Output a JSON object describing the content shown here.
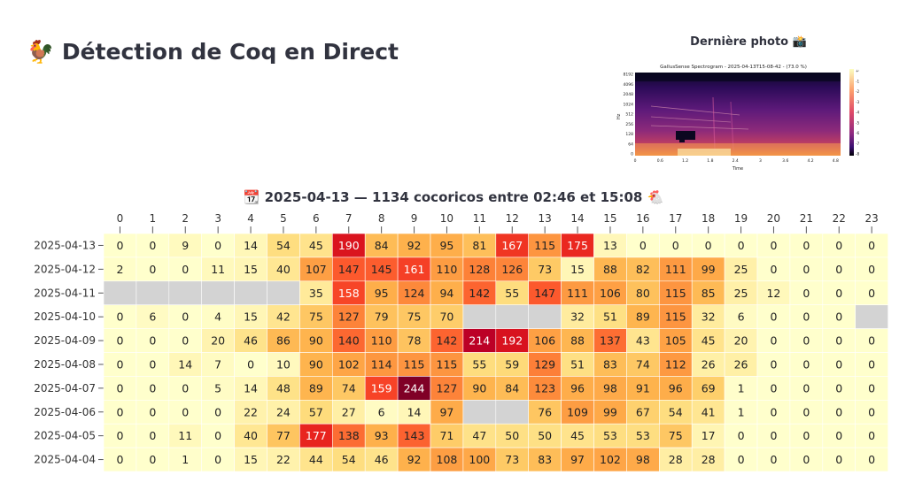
{
  "page": {
    "title": "🐓 Détection de Coq en Direct",
    "photo_caption": "Dernière photo 📸",
    "heatmap_title": "📆 2025-04-13 — 1134 cocoricos entre 02:46 et 15:08 🐔"
  },
  "spectrogram": {
    "title": "GallusSense Spectrogram - 2025-04-13T15-08-42 - (73.0 %)",
    "ylabel": "Hz",
    "xlabel": "Time",
    "yticks": [
      "8192",
      "4096",
      "2048",
      "1024",
      "512",
      "256",
      "128",
      "64",
      "0"
    ],
    "xticks": [
      "0",
      "0.6",
      "1.2",
      "1.8",
      "2.4",
      "3",
      "3.6",
      "4.2",
      "4.8"
    ],
    "colorbar_ticks": [
      "+0 dB",
      "-10 dB",
      "-20 dB",
      "-30 dB",
      "-40 dB",
      "-50 dB",
      "-60 dB",
      "-70 dB",
      "-80 dB"
    ]
  },
  "chart_data": {
    "type": "heatmap",
    "x": [
      "0",
      "1",
      "2",
      "3",
      "4",
      "5",
      "6",
      "7",
      "8",
      "9",
      "10",
      "11",
      "12",
      "13",
      "14",
      "15",
      "16",
      "17",
      "18",
      "19",
      "20",
      "21",
      "22",
      "23"
    ],
    "y": [
      "2025-04-13",
      "2025-04-12",
      "2025-04-11",
      "2025-04-10",
      "2025-04-09",
      "2025-04-08",
      "2025-04-07",
      "2025-04-06",
      "2025-04-05",
      "2025-04-04"
    ],
    "values": [
      [
        0,
        0,
        9,
        0,
        14,
        54,
        45,
        190,
        84,
        92,
        95,
        81,
        167,
        115,
        175,
        13,
        0,
        0,
        0,
        0,
        0,
        0,
        0,
        0
      ],
      [
        2,
        0,
        0,
        11,
        15,
        40,
        107,
        147,
        145,
        161,
        110,
        128,
        126,
        73,
        15,
        88,
        82,
        111,
        99,
        25,
        0,
        0,
        0,
        0
      ],
      [
        null,
        null,
        null,
        null,
        null,
        null,
        35,
        158,
        95,
        124,
        94,
        142,
        55,
        147,
        111,
        106,
        80,
        115,
        85,
        25,
        12,
        0,
        0,
        0
      ],
      [
        0,
        6,
        0,
        4,
        15,
        42,
        75,
        127,
        79,
        75,
        70,
        null,
        null,
        null,
        32,
        51,
        89,
        115,
        32,
        6,
        0,
        0,
        0,
        null
      ],
      [
        0,
        0,
        0,
        20,
        46,
        86,
        90,
        140,
        110,
        78,
        142,
        214,
        192,
        106,
        88,
        137,
        43,
        105,
        45,
        20,
        0,
        0,
        0,
        0
      ],
      [
        0,
        0,
        14,
        7,
        0,
        10,
        90,
        102,
        114,
        115,
        115,
        55,
        59,
        129,
        51,
        83,
        74,
        112,
        26,
        26,
        0,
        0,
        0,
        0
      ],
      [
        0,
        0,
        0,
        5,
        14,
        48,
        89,
        74,
        159,
        244,
        127,
        90,
        84,
        123,
        96,
        98,
        91,
        96,
        69,
        1,
        0,
        0,
        0,
        0
      ],
      [
        0,
        0,
        0,
        0,
        22,
        24,
        57,
        27,
        6,
        14,
        97,
        null,
        null,
        76,
        109,
        99,
        67,
        54,
        41,
        1,
        0,
        0,
        0,
        0
      ],
      [
        0,
        0,
        11,
        0,
        40,
        77,
        177,
        138,
        93,
        143,
        71,
        47,
        50,
        50,
        45,
        53,
        53,
        75,
        17,
        0,
        0,
        0,
        0,
        0
      ],
      [
        0,
        0,
        1,
        0,
        15,
        22,
        44,
        54,
        46,
        92,
        108,
        100,
        73,
        83,
        97,
        102,
        98,
        28,
        28,
        0,
        0,
        0,
        0,
        0
      ]
    ],
    "colormap": "YlOrRd",
    "missing_color": "#d3d3d3",
    "vmin": 0,
    "vmax": 244
  }
}
